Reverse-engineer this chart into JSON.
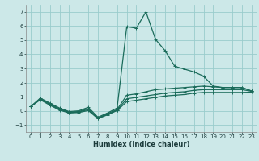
{
  "xlabel": "Humidex (Indice chaleur)",
  "xlim": [
    -0.5,
    23.5
  ],
  "ylim": [
    -1.5,
    7.5
  ],
  "xticks": [
    0,
    1,
    2,
    3,
    4,
    5,
    6,
    7,
    8,
    9,
    10,
    11,
    12,
    13,
    14,
    15,
    16,
    17,
    18,
    19,
    20,
    21,
    22,
    23
  ],
  "yticks": [
    -1,
    0,
    1,
    2,
    3,
    4,
    5,
    6,
    7
  ],
  "background_color": "#cce8e8",
  "grid_color": "#99cccc",
  "line_color": "#1a6b5a",
  "lines": [
    {
      "x": [
        0,
        1,
        2,
        3,
        4,
        5,
        6,
        7,
        8,
        9,
        10,
        11,
        12,
        13,
        14,
        15,
        16,
        17,
        18,
        19,
        20,
        21,
        22,
        23
      ],
      "y": [
        0.3,
        0.9,
        0.55,
        0.2,
        -0.05,
        0.0,
        0.25,
        -0.45,
        -0.15,
        0.2,
        5.95,
        5.85,
        7.0,
        5.05,
        4.25,
        3.15,
        2.95,
        2.75,
        2.45,
        1.75,
        1.65,
        1.65,
        1.65,
        1.4
      ]
    },
    {
      "x": [
        0,
        1,
        2,
        3,
        4,
        5,
        6,
        7,
        8,
        9,
        10,
        11,
        12,
        13,
        14,
        15,
        16,
        17,
        18,
        19,
        20,
        21,
        22,
        23
      ],
      "y": [
        0.3,
        0.85,
        0.5,
        0.15,
        -0.1,
        -0.05,
        0.15,
        -0.5,
        -0.2,
        0.1,
        1.1,
        1.2,
        1.35,
        1.5,
        1.55,
        1.6,
        1.65,
        1.7,
        1.75,
        1.7,
        1.65,
        1.65,
        1.65,
        1.4
      ]
    },
    {
      "x": [
        0,
        1,
        2,
        3,
        4,
        5,
        6,
        7,
        8,
        9,
        10,
        11,
        12,
        13,
        14,
        15,
        16,
        17,
        18,
        19,
        20,
        21,
        22,
        23
      ],
      "y": [
        0.3,
        0.82,
        0.45,
        0.1,
        -0.12,
        -0.08,
        0.08,
        -0.52,
        -0.25,
        0.05,
        0.85,
        0.95,
        1.05,
        1.15,
        1.25,
        1.3,
        1.35,
        1.45,
        1.5,
        1.5,
        1.5,
        1.5,
        1.5,
        1.38
      ]
    },
    {
      "x": [
        0,
        1,
        2,
        3,
        4,
        5,
        6,
        7,
        8,
        9,
        10,
        11,
        12,
        13,
        14,
        15,
        16,
        17,
        18,
        19,
        20,
        21,
        22,
        23
      ],
      "y": [
        0.3,
        0.78,
        0.4,
        0.05,
        -0.15,
        -0.12,
        0.02,
        -0.55,
        -0.28,
        0.02,
        0.65,
        0.75,
        0.85,
        0.95,
        1.05,
        1.1,
        1.15,
        1.25,
        1.3,
        1.3,
        1.3,
        1.3,
        1.3,
        1.32
      ]
    }
  ]
}
